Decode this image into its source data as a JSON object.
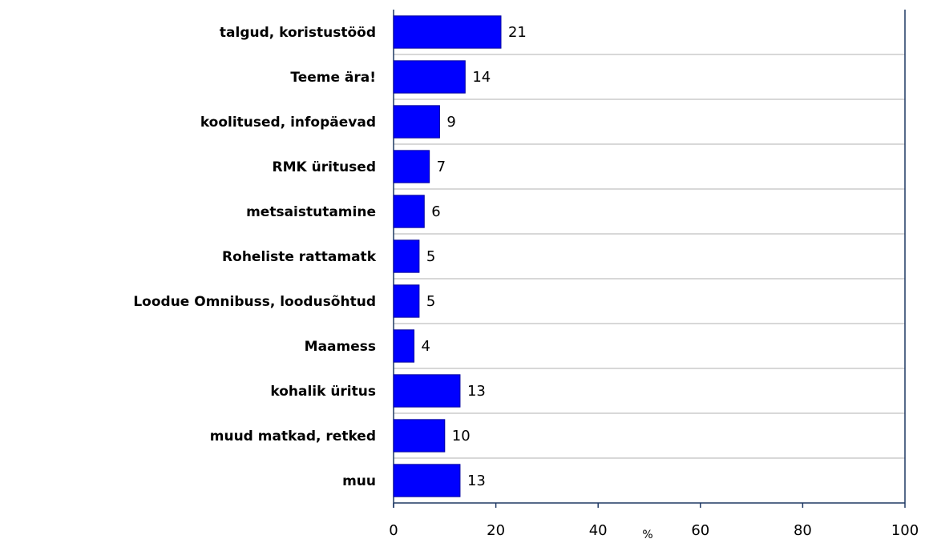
{
  "chart_data": {
    "type": "bar",
    "orientation": "horizontal",
    "categories": [
      "talgud, koristustööd",
      "Teeme ära!",
      "koolitused, infopäevad",
      "RMK üritused",
      "metsaistutamine",
      "Roheliste rattamatk",
      "Loodue Omnibuss, loodusõhtud",
      "Maamess",
      "kohalik üritus",
      "muud matkad, retked",
      "muu"
    ],
    "values": [
      21,
      14,
      9,
      7,
      6,
      5,
      5,
      4,
      13,
      10,
      13
    ],
    "color": "#0000ff",
    "xlabel": "%",
    "xlim": [
      0,
      100
    ],
    "xticks": [
      0,
      20,
      40,
      60,
      80,
      100
    ]
  }
}
